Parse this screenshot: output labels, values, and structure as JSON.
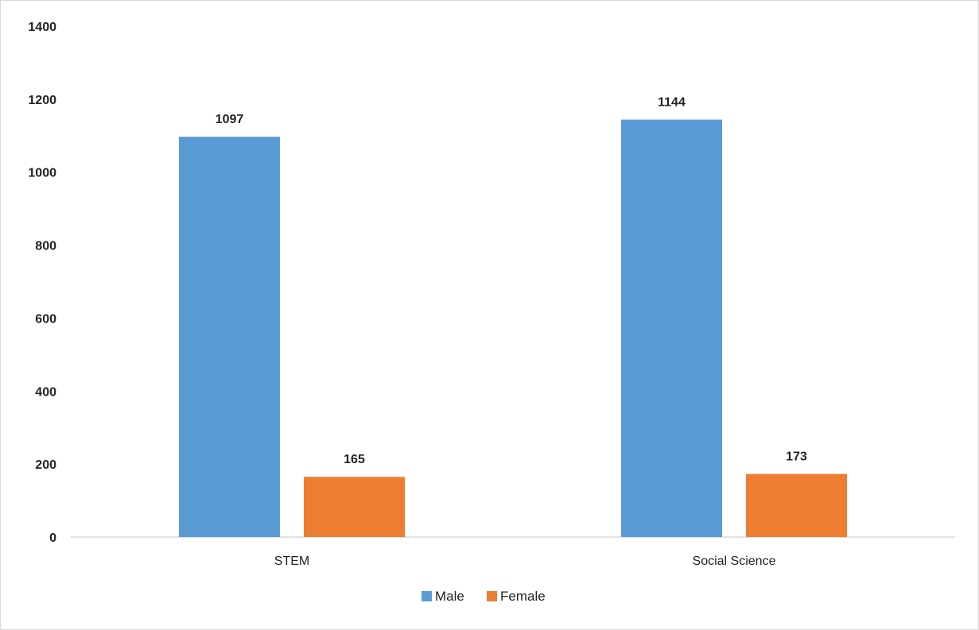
{
  "chart_data": {
    "type": "bar",
    "categories": [
      "STEM",
      "Social Science"
    ],
    "series": [
      {
        "name": "Male",
        "values": [
          1097,
          1144
        ],
        "color": "#5b9bd5"
      },
      {
        "name": "Female",
        "values": [
          165,
          173
        ],
        "color": "#ed7d31"
      }
    ],
    "ylim": [
      0,
      1400
    ],
    "yticks": [
      "0",
      "200",
      "400",
      "600",
      "800",
      "1000",
      "1200",
      "1400"
    ],
    "grid": false,
    "legend_position": "bottom",
    "data_labels": true
  }
}
